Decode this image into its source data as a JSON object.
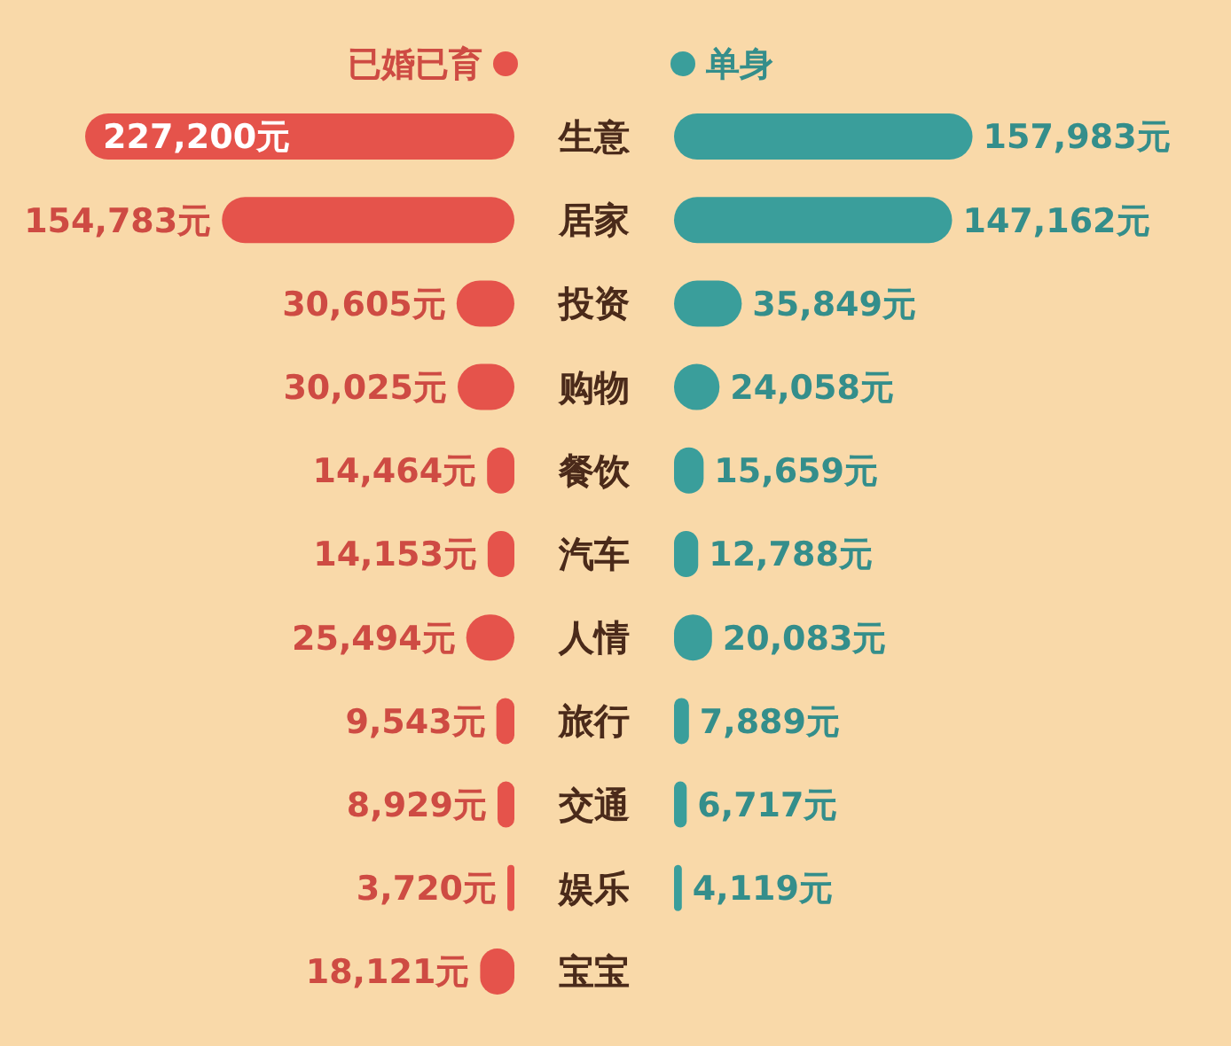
{
  "chart_data": [
    {
      "type": "bar",
      "orientation": "horizontal",
      "legend": "top",
      "categories": [
        "生意",
        "居家",
        "投资",
        "购物",
        "餐饮",
        "汽车",
        "人情",
        "旅行",
        "交通",
        "娱乐",
        "宝宝"
      ],
      "series": [
        {
          "name": "已婚已育",
          "color": "#e5534b",
          "values": [
            227200,
            154783,
            30605,
            30025,
            14464,
            14153,
            25494,
            9543,
            8929,
            3720,
            18121
          ],
          "value_labels": [
            "227,200元",
            "154,783元",
            "30,605元",
            "30,025元",
            "14,464元",
            "14,153元",
            "25,494元",
            "9,543元",
            "8,929元",
            "3,720元",
            "18,121元"
          ]
        }
      ]
    },
    {
      "type": "bar",
      "orientation": "horizontal",
      "legend": "top",
      "categories": [
        null,
        null,
        null,
        null,
        null,
        null,
        null,
        null,
        null,
        null,
        null
      ],
      "series": [
        {
          "name": "单身",
          "color": "#3a9e9b",
          "values": [
            157983,
            147162,
            35849,
            24058,
            15659,
            12788,
            20083,
            7889,
            6717,
            4119,
            null
          ],
          "value_labels": [
            "157,983元",
            "147,162元",
            "35,849元",
            "24,058元",
            "15,659元",
            "12,788元",
            "20,083元",
            "7,889元",
            "6,717元",
            "4,119元",
            null
          ]
        }
      ]
    }
  ]
}
